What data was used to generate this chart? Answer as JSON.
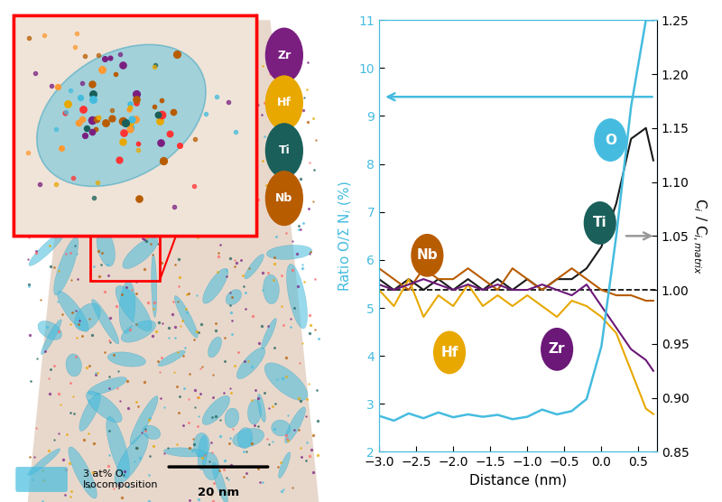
{
  "x_distance": [
    -3.0,
    -2.8,
    -2.6,
    -2.4,
    -2.2,
    -2.0,
    -1.8,
    -1.6,
    -1.4,
    -1.2,
    -1.0,
    -0.8,
    -0.6,
    -0.4,
    -0.2,
    0.0,
    0.2,
    0.4,
    0.6,
    0.7
  ],
  "O_ratio": [
    2.75,
    2.65,
    2.8,
    2.7,
    2.82,
    2.72,
    2.78,
    2.73,
    2.77,
    2.68,
    2.73,
    2.88,
    2.78,
    2.85,
    3.1,
    4.2,
    6.5,
    9.2,
    11.0,
    11.0
  ],
  "Ti_ci": [
    1.01,
    1.0,
    1.01,
    1.0,
    1.01,
    1.0,
    1.01,
    1.0,
    1.01,
    1.0,
    1.01,
    1.0,
    1.01,
    1.01,
    1.02,
    1.04,
    1.08,
    1.14,
    1.15,
    1.12
  ],
  "Nb_ci": [
    1.02,
    1.01,
    1.0,
    1.02,
    1.01,
    1.01,
    1.02,
    1.01,
    1.0,
    1.02,
    1.01,
    1.0,
    1.01,
    1.02,
    1.01,
    1.0,
    0.995,
    0.995,
    0.99,
    0.99
  ],
  "Hf_ci": [
    1.0,
    0.985,
    1.01,
    0.975,
    0.995,
    0.985,
    1.005,
    0.985,
    0.995,
    0.985,
    0.995,
    0.985,
    0.975,
    0.99,
    0.985,
    0.975,
    0.96,
    0.925,
    0.89,
    0.885
  ],
  "Zr_ci": [
    1.005,
    1.0,
    1.005,
    1.01,
    1.005,
    1.0,
    1.005,
    1.0,
    1.005,
    1.0,
    1.0,
    1.005,
    1.0,
    0.995,
    1.005,
    0.985,
    0.965,
    0.945,
    0.935,
    0.925
  ],
  "color_O": "#45BCDF",
  "color_Ti": "#1a1a1a",
  "color_Nb": "#b85c00",
  "color_Hf": "#e8a800",
  "color_Zr": "#6b1878",
  "color_arrow_left": "#45BCDF",
  "color_arrow_right": "#999999",
  "ylim_left": [
    2,
    11
  ],
  "ylim_right": [
    0.85,
    1.25
  ],
  "xlim": [
    -3.0,
    0.75
  ],
  "xlabel": "Distance (nm)",
  "ylabel_left": "Ratio O/Σ N$_{i}$ (%)",
  "ylabel_right": "C$_{i}$ / C$_{i,matrix}$",
  "dashed_line_y_right": 1.0,
  "bg_color": "#ffffff",
  "legend_items": [
    {
      "label": "Zr",
      "color": "#7a1f80"
    },
    {
      "label": "Hf",
      "color": "#e8a800"
    },
    {
      "label": "Ti",
      "color": "#1a5f5a"
    },
    {
      "label": "Nb",
      "color": "#b85c00"
    }
  ],
  "bubble_O_color": "#45BCDF",
  "bubble_Ti_color": "#1a5f5a",
  "bubble_Nb_color": "#b85c00",
  "bubble_Hf_color": "#e8a800",
  "bubble_Zr_color": "#6b1878"
}
